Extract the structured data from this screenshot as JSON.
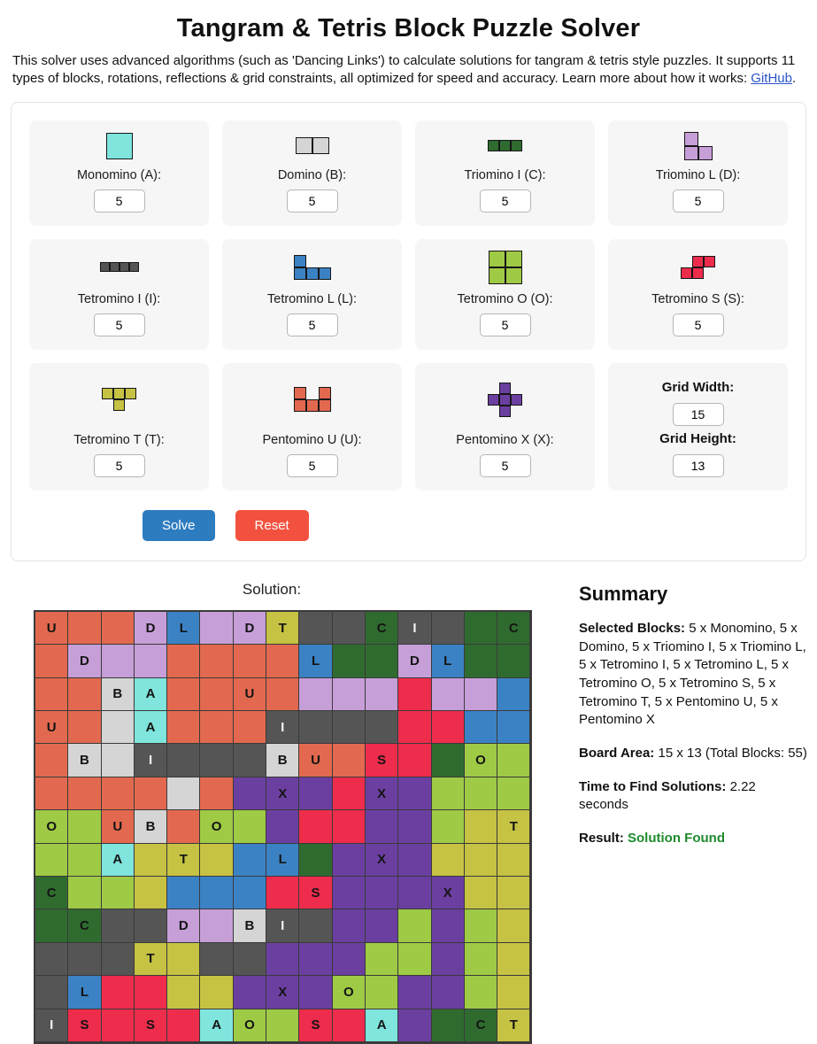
{
  "header": {
    "title": "Tangram & Tetris Block Puzzle Solver",
    "intro_before_link": "This solver uses advanced algorithms (such as 'Dancing Links') to calculate solutions for tangram & tetris style puzzles. It supports 11 types of blocks, rotations, reflections & grid constraints, all optimized for speed and accuracy. Learn more about how it works: ",
    "link_text": "GitHub",
    "intro_after_link": "."
  },
  "colors": {
    "blocks": {
      "A": "#7fe5dd",
      "B": "#d5d5d5",
      "C": "#2f6b2f",
      "D": "#c79fd8",
      "I": "#555555",
      "L": "#3b82c4",
      "O": "#9fca45",
      "S": "#ee2c4c",
      "T": "#c6c243",
      "U": "#e2694f",
      "X": "#6b3fa0"
    },
    "solve_button": "#2e7cc0",
    "reset_button": "#f3513f",
    "result_text": "#1f8b2e",
    "link": "#2a54c9",
    "grid_line": "#3a3a3a",
    "letter_dark": "#141414",
    "letter_light": "#f2f2f2"
  },
  "blocks": [
    {
      "key": "A",
      "label": "Monomino (A):",
      "value": "5",
      "icon_name": "monomino-icon",
      "cell": 30,
      "shape": [
        [
          1
        ]
      ]
    },
    {
      "key": "B",
      "label": "Domino (B):",
      "value": "5",
      "icon_name": "domino-icon",
      "cell": 19,
      "shape": [
        [
          1,
          1
        ]
      ]
    },
    {
      "key": "C",
      "label": "Triomino I (C):",
      "value": "5",
      "icon_name": "triomino-i-icon",
      "cell": 13,
      "shape": [
        [
          1,
          1,
          1
        ]
      ]
    },
    {
      "key": "D",
      "label": "Triomino L (D):",
      "value": "5",
      "icon_name": "triomino-l-icon",
      "cell": 16,
      "shape": [
        [
          1,
          0
        ],
        [
          1,
          1
        ]
      ]
    },
    {
      "key": "I",
      "label": "Tetromino I (I):",
      "value": "5",
      "icon_name": "tetromino-i-icon",
      "cell": 11,
      "shape": [
        [
          1,
          1,
          1,
          1
        ]
      ]
    },
    {
      "key": "L",
      "label": "Tetromino L (L):",
      "value": "5",
      "icon_name": "tetromino-l-icon",
      "cell": 14,
      "shape": [
        [
          1,
          0,
          0
        ],
        [
          1,
          1,
          1
        ]
      ]
    },
    {
      "key": "O",
      "label": "Tetromino O (O):",
      "value": "5",
      "icon_name": "tetromino-o-icon",
      "cell": 19,
      "shape": [
        [
          1,
          1
        ],
        [
          1,
          1
        ]
      ]
    },
    {
      "key": "S",
      "label": "Tetromino S (S):",
      "value": "5",
      "icon_name": "tetromino-s-icon",
      "cell": 13,
      "shape": [
        [
          0,
          1,
          1
        ],
        [
          1,
          1,
          0
        ]
      ]
    },
    {
      "key": "T",
      "label": "Tetromino T (T):",
      "value": "5",
      "icon_name": "tetromino-t-icon",
      "cell": 13,
      "shape": [
        [
          1,
          1,
          1
        ],
        [
          0,
          1,
          0
        ]
      ]
    },
    {
      "key": "U",
      "label": "Pentomino U (U):",
      "value": "5",
      "icon_name": "pentomino-u-icon",
      "cell": 14,
      "shape": [
        [
          1,
          0,
          1
        ],
        [
          1,
          1,
          1
        ]
      ]
    },
    {
      "key": "X",
      "label": "Pentomino X (X):",
      "value": "5",
      "icon_name": "pentomino-x-icon",
      "cell": 13,
      "shape": [
        [
          0,
          1,
          0
        ],
        [
          1,
          1,
          1
        ],
        [
          0,
          1,
          0
        ]
      ]
    }
  ],
  "grid_size": {
    "width_label": "Grid Width:",
    "width_value": "15",
    "height_label": "Grid Height:",
    "height_value": "13"
  },
  "buttons": {
    "solve": "Solve",
    "reset": "Reset"
  },
  "solution": {
    "label": "Solution:",
    "cols": 15,
    "rows": 13,
    "cells": [
      "UUUDLDDTIICIICC",
      "UDDDUUUULCCDLCC",
      "UUBAUUUUDDDSDDL",
      "UUBAUUUIIIISSLL",
      "UBBIIIIBUUSSCOO",
      "UUUUBUXXXSXXOOO",
      "OOUBUOOXSSXXOTT",
      "OOATTTLLCXXXTTT",
      "COOTLLLSSXXXXTT",
      "CCIIDDBIIXXOXOT",
      "IIITTIIXXXOOXOT",
      "ILSSTTXXXOOXXOT",
      "ISSSSAOOSSAXCCT"
    ],
    "labels": [
      "U..DL.DT..CI..C",
      ".D......L..DL..",
      "..BA..U........",
      "U..A...I.......",
      ".B.I...BU.S..O.",
      ".......X..X....",
      "O.UB.O........T",
      "..A.T..L..X....",
      "C.......S...X..",
      ".C..D.BI.......",
      "...T...........",
      ".L.....X.O.....",
      "IS.S.AO.S.A..CT"
    ]
  },
  "summary": {
    "heading": "Summary",
    "selected_blocks_label": "Selected Blocks:",
    "selected_blocks_value": "5 x Monomino, 5 x Domino, 5 x Triomino I, 5 x Triomino L, 5 x Tetromino I, 5 x Tetromino L, 5 x Tetromino O, 5 x Tetromino S, 5 x Tetromino T, 5 x Pentomino U, 5 x Pentomino X",
    "board_area_label": "Board Area:",
    "board_area_value": "15 x 13 (Total Blocks: 55)",
    "time_label": "Time to Find Solutions:",
    "time_value": "2.22 seconds",
    "result_label": "Result:",
    "result_value": "Solution Found"
  }
}
